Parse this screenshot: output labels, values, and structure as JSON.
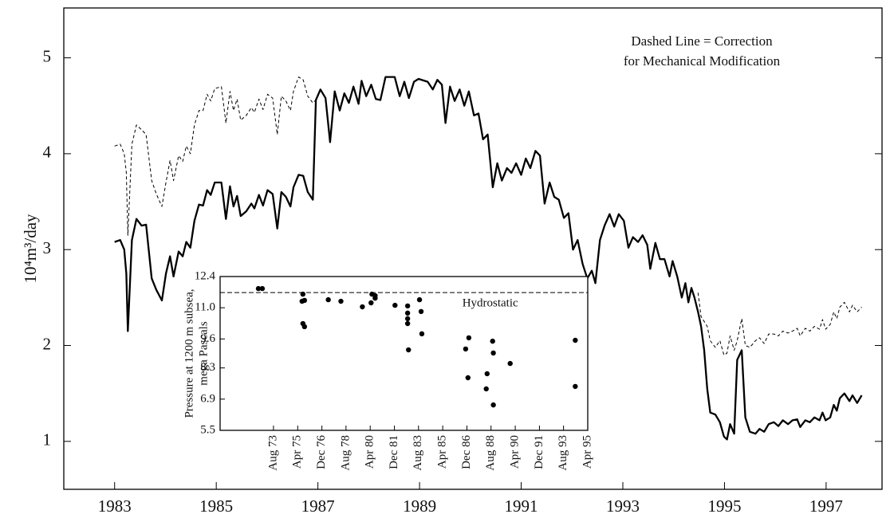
{
  "chart_data": [
    {
      "type": "line",
      "ylabel": "10⁴m³/day",
      "annotation": [
        "Dashed Line = Correction",
        "for Mechanical Modification"
      ],
      "xlim": [
        1982.0,
        1998.1
      ],
      "xticks": [
        1983,
        1985,
        1987,
        1989,
        1991,
        1993,
        1995,
        1997
      ],
      "ylim": [
        0.5,
        5.52
      ],
      "yticks": [
        1,
        2,
        3,
        4,
        5
      ],
      "x": [
        1983.0,
        1983.11,
        1983.19,
        1983.23,
        1983.26,
        1983.34,
        1983.43,
        1983.53,
        1983.62,
        1983.73,
        1983.82,
        1983.93,
        1984.01,
        1984.09,
        1984.16,
        1984.26,
        1984.34,
        1984.41,
        1984.49,
        1984.57,
        1984.66,
        1984.74,
        1984.82,
        1984.89,
        1984.97,
        1985.1,
        1985.19,
        1985.27,
        1985.34,
        1985.41,
        1985.48,
        1985.59,
        1985.69,
        1985.75,
        1985.84,
        1985.92,
        1986.01,
        1986.11,
        1986.2,
        1986.28,
        1986.37,
        1986.46,
        1986.52,
        1986.62,
        1986.71,
        1986.8,
        1986.9,
        1986.96,
        1987.05,
        1987.15,
        1987.24,
        1987.33,
        1987.43,
        1987.52,
        1987.61,
        1987.7,
        1987.8,
        1987.86,
        1987.95,
        1988.05,
        1988.14,
        1988.23,
        1988.33,
        1988.51,
        1988.61,
        1988.7,
        1988.79,
        1988.89,
        1988.98,
        1989.16,
        1989.26,
        1989.35,
        1989.44,
        1989.51,
        1989.6,
        1989.69,
        1989.79,
        1989.88,
        1989.97,
        1990.07,
        1990.16,
        1990.25,
        1990.34,
        1990.44,
        1990.53,
        1990.62,
        1990.72,
        1990.81,
        1990.9,
        1991.0,
        1991.09,
        1991.18,
        1991.28,
        1991.37,
        1991.46,
        1991.56,
        1991.65,
        1991.74,
        1991.84,
        1991.93,
        1992.02,
        1992.11,
        1992.21,
        1992.3,
        1992.39,
        1992.46,
        1992.55,
        1992.64,
        1992.74,
        1992.83,
        1992.92,
        1993.02,
        1993.11,
        1993.2,
        1993.3,
        1993.39,
        1993.48,
        1993.54,
        1993.64,
        1993.73,
        1993.82,
        1993.92,
        1993.98,
        1994.07,
        1994.16,
        1994.23,
        1994.29,
        1994.35,
        1994.41,
        1994.48,
        1994.54,
        1994.6,
        1994.66,
        1994.72,
        1994.82,
        1994.91,
        1994.99,
        1995.05,
        1995.11,
        1995.19,
        1995.25,
        1995.34,
        1995.41,
        1995.5,
        1995.61,
        1995.69,
        1995.78,
        1995.87,
        1995.97,
        1996.06,
        1996.15,
        1996.25,
        1996.34,
        1996.43,
        1996.49,
        1996.59,
        1996.68,
        1996.77,
        1996.87,
        1996.93,
        1996.99,
        1997.08,
        1997.15,
        1997.21,
        1997.27,
        1997.36,
        1997.46,
        1997.52,
        1997.61,
        1997.7
      ],
      "series": [
        {
          "style": "solid",
          "color": "#000000",
          "values": [
            3.08,
            3.1,
            3.0,
            2.75,
            2.15,
            3.1,
            3.32,
            3.25,
            3.26,
            2.7,
            2.58,
            2.47,
            2.75,
            2.93,
            2.72,
            2.98,
            2.93,
            3.08,
            3.02,
            3.3,
            3.47,
            3.46,
            3.62,
            3.57,
            3.7,
            3.7,
            3.32,
            3.66,
            3.45,
            3.56,
            3.35,
            3.4,
            3.48,
            3.43,
            3.57,
            3.46,
            3.62,
            3.58,
            3.22,
            3.6,
            3.55,
            3.45,
            3.65,
            3.78,
            3.77,
            3.6,
            3.52,
            4.56,
            4.67,
            4.58,
            4.12,
            4.65,
            4.45,
            4.63,
            4.53,
            4.7,
            4.52,
            4.76,
            4.6,
            4.72,
            4.57,
            4.56,
            4.8,
            4.8,
            4.6,
            4.75,
            4.58,
            4.75,
            4.78,
            4.75,
            4.67,
            4.77,
            4.72,
            4.32,
            4.7,
            4.55,
            4.67,
            4.5,
            4.65,
            4.4,
            4.42,
            4.15,
            4.2,
            3.65,
            3.9,
            3.72,
            3.85,
            3.8,
            3.9,
            3.78,
            3.95,
            3.85,
            4.03,
            3.98,
            3.48,
            3.7,
            3.55,
            3.52,
            3.33,
            3.38,
            3.0,
            3.1,
            2.85,
            2.7,
            2.78,
            2.65,
            3.1,
            3.25,
            3.37,
            3.24,
            3.37,
            3.3,
            3.02,
            3.13,
            3.08,
            3.15,
            3.05,
            2.8,
            3.07,
            2.9,
            2.9,
            2.72,
            2.88,
            2.72,
            2.5,
            2.65,
            2.45,
            2.6,
            2.5,
            2.35,
            2.2,
            1.95,
            1.55,
            1.3,
            1.28,
            1.2,
            1.05,
            1.02,
            1.18,
            1.08,
            1.85,
            1.95,
            1.25,
            1.1,
            1.08,
            1.13,
            1.1,
            1.18,
            1.2,
            1.16,
            1.22,
            1.18,
            1.22,
            1.23,
            1.15,
            1.22,
            1.2,
            1.25,
            1.22,
            1.3,
            1.22,
            1.25,
            1.38,
            1.32,
            1.45,
            1.5,
            1.42,
            1.48,
            1.4,
            1.48
          ]
        },
        {
          "style": "dashed",
          "color": "#000000",
          "values": [
            4.08,
            4.1,
            4.0,
            3.8,
            3.15,
            4.1,
            4.3,
            4.25,
            4.2,
            3.72,
            3.58,
            3.45,
            3.7,
            3.93,
            3.72,
            3.98,
            3.92,
            4.08,
            4.0,
            4.3,
            4.45,
            4.45,
            4.62,
            4.55,
            4.68,
            4.7,
            4.32,
            4.65,
            4.45,
            4.57,
            4.35,
            4.4,
            4.48,
            4.43,
            4.57,
            4.46,
            4.62,
            4.58,
            4.2,
            4.6,
            4.55,
            4.45,
            4.65,
            4.8,
            4.77,
            4.6,
            4.53,
            4.56,
            null,
            null,
            null,
            null,
            null,
            null,
            null,
            null,
            null,
            null,
            null,
            null,
            null,
            null,
            null,
            null,
            null,
            null,
            null,
            null,
            null,
            null,
            null,
            null,
            null,
            null,
            null,
            null,
            null,
            null,
            null,
            null,
            null,
            null,
            null,
            null,
            null,
            null,
            null,
            null,
            null,
            null,
            null,
            null,
            null,
            null,
            null,
            null,
            null,
            null,
            null,
            null,
            null,
            null,
            null,
            null,
            null,
            null,
            null,
            null,
            null,
            null,
            null,
            null,
            null,
            null,
            null,
            null,
            null,
            null,
            null,
            null,
            null,
            null,
            null,
            null,
            null,
            null,
            null,
            null,
            null,
            2.55,
            2.3,
            2.25,
            2.2,
            2.05,
            1.98,
            2.05,
            1.9,
            1.92,
            2.1,
            1.95,
            2.05,
            2.28,
            2.0,
            1.98,
            2.05,
            2.08,
            2.02,
            2.12,
            2.12,
            2.1,
            2.15,
            2.13,
            2.15,
            2.18,
            2.1,
            2.18,
            2.15,
            2.2,
            2.17,
            2.27,
            2.17,
            2.22,
            2.35,
            2.28,
            2.4,
            2.45,
            2.35,
            2.42,
            2.35,
            2.4
          ]
        }
      ]
    },
    {
      "type": "scatter",
      "ylabel": [
        "Pressure at 1200 m subsea,",
        "mega Pascals"
      ],
      "xlim": [
        1969.9,
        1995.25
      ],
      "xticks": [
        {
          "value": 1973.58,
          "label": "Aug 73"
        },
        {
          "value": 1975.25,
          "label": "Apr 75"
        },
        {
          "value": 1976.92,
          "label": "Dec 76"
        },
        {
          "value": 1978.58,
          "label": "Aug 78"
        },
        {
          "value": 1980.25,
          "label": "Apr 80"
        },
        {
          "value": 1981.92,
          "label": "Dec 81"
        },
        {
          "value": 1983.58,
          "label": "Aug 83"
        },
        {
          "value": 1985.25,
          "label": "Apr 85"
        },
        {
          "value": 1986.92,
          "label": "Dec 86"
        },
        {
          "value": 1988.58,
          "label": "Aug 88"
        },
        {
          "value": 1990.25,
          "label": "Apr 90"
        },
        {
          "value": 1991.92,
          "label": "Dec 91"
        },
        {
          "value": 1993.58,
          "label": "Aug 93"
        },
        {
          "value": 1995.25,
          "label": "Apr 95"
        }
      ],
      "ylim": [
        5.5,
        12.4
      ],
      "yticks": [
        5.5,
        6.9,
        8.3,
        9.6,
        {
          "value": 11,
          "label": "11.0"
        },
        12.4
      ],
      "hline": {
        "value": 11.68,
        "label": "Hydrostatic"
      },
      "color": "#000000",
      "x": [
        1972.54,
        1972.81,
        1975.61,
        1975.55,
        1975.72,
        1975.61,
        1975.72,
        1977.36,
        1978.23,
        1979.71,
        1980.31,
        1980.37,
        1980.59,
        1980.59,
        1981.96,
        1982.83,
        1982.83,
        1982.83,
        1982.83,
        1982.89,
        1983.65,
        1983.76,
        1983.81,
        1986.83,
        1987.05,
        1986.99,
        1988.31,
        1988.25,
        1988.69,
        1988.74,
        1988.74,
        1989.9,
        1994.39,
        1994.39
      ],
      "values": [
        11.86,
        11.86,
        11.61,
        11.29,
        11.33,
        10.29,
        10.15,
        11.36,
        11.29,
        11.04,
        11.22,
        11.61,
        11.54,
        11.43,
        11.11,
        11.08,
        10.76,
        10.51,
        10.29,
        9.11,
        11.36,
        10.83,
        9.83,
        9.15,
        9.65,
        7.86,
        8.04,
        7.36,
        9.5,
        8.97,
        6.64,
        8.5,
        9.54,
        7.47
      ]
    }
  ]
}
